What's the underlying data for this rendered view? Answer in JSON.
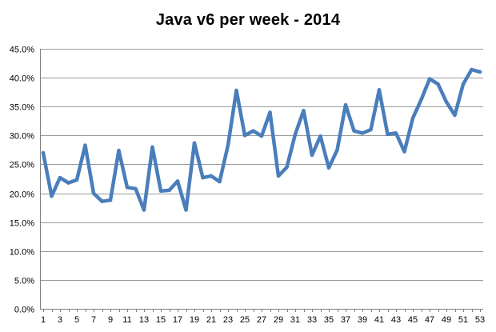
{
  "chart_data": {
    "type": "line",
    "title": "Java v6 per week - 2014",
    "xlabel": "",
    "ylabel": "",
    "ylim": [
      0,
      45
    ],
    "y_ticks": [
      0,
      5,
      10,
      15,
      20,
      25,
      30,
      35,
      40,
      45
    ],
    "y_tick_labels": [
      "0.0%",
      "5.0%",
      "10.0%",
      "15.0%",
      "20.0%",
      "25.0%",
      "30.0%",
      "35.0%",
      "40.0%",
      "45.0%"
    ],
    "x_tick_labels": [
      "1",
      "3",
      "5",
      "7",
      "9",
      "11",
      "13",
      "15",
      "17",
      "19",
      "21",
      "23",
      "25",
      "27",
      "29",
      "31",
      "33",
      "35",
      "37",
      "39",
      "41",
      "43",
      "45",
      "47",
      "49",
      "51",
      "53"
    ],
    "grid": true,
    "legend": "none",
    "series": [
      {
        "name": "Java v6",
        "color": "#4a7ebb",
        "x": [
          1,
          2,
          3,
          4,
          5,
          6,
          7,
          8,
          9,
          10,
          11,
          12,
          13,
          14,
          15,
          16,
          17,
          18,
          19,
          20,
          21,
          22,
          23,
          24,
          25,
          26,
          27,
          28,
          29,
          30,
          31,
          32,
          33,
          34,
          35,
          36,
          37,
          38,
          39,
          40,
          41,
          42,
          43,
          44,
          45,
          46,
          47,
          48,
          49,
          50,
          51,
          52,
          53
        ],
        "values": [
          27.0,
          19.5,
          22.7,
          21.8,
          22.3,
          28.3,
          20.0,
          18.6,
          18.8,
          27.4,
          21.0,
          20.8,
          17.1,
          28.0,
          20.4,
          20.5,
          22.1,
          17.1,
          28.7,
          22.7,
          23.0,
          22.0,
          28.3,
          37.8,
          30.0,
          30.8,
          29.9,
          34.0,
          23.0,
          24.5,
          30.2,
          34.3,
          26.6,
          29.9,
          24.4,
          27.5,
          35.3,
          30.8,
          30.4,
          31.0,
          37.9,
          30.2,
          30.4,
          27.2,
          33.0,
          36.2,
          39.8,
          38.9,
          35.8,
          33.5,
          38.9,
          41.4,
          41.0
        ]
      }
    ]
  }
}
